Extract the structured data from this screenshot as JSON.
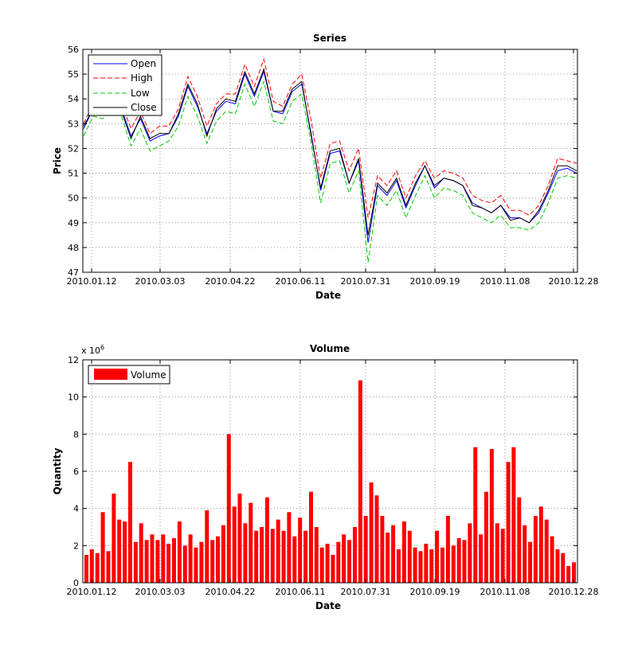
{
  "colors": {
    "open": "#0000ff",
    "high": "#ff0000",
    "low": "#00cc00",
    "close": "#000000",
    "volume": "#ff0000",
    "grid": "#808080"
  },
  "chart_data": [
    {
      "type": "line",
      "title": "Series",
      "xlabel": "Date",
      "ylabel": "Price",
      "ylim": [
        47,
        56
      ],
      "yticks": [
        47,
        48,
        49,
        50,
        51,
        52,
        53,
        54,
        55,
        56
      ],
      "xticks": [
        "2010.01.12",
        "2010.03.03",
        "2010.04.22",
        "2010.06.11",
        "2010.07.31",
        "2010.09.19",
        "2010.11.08",
        "2010.12.28"
      ],
      "grid": true,
      "legend": "top-left",
      "x": [
        "2010-01-01",
        "2010-01-08",
        "2010-01-15",
        "2010-01-22",
        "2010-01-29",
        "2010-02-05",
        "2010-02-12",
        "2010-02-19",
        "2010-02-26",
        "2010-03-05",
        "2010-03-12",
        "2010-03-19",
        "2010-03-26",
        "2010-04-02",
        "2010-04-09",
        "2010-04-16",
        "2010-04-23",
        "2010-04-30",
        "2010-05-07",
        "2010-05-14",
        "2010-05-21",
        "2010-05-28",
        "2010-06-04",
        "2010-06-11",
        "2010-06-18",
        "2010-06-25",
        "2010-07-02",
        "2010-07-09",
        "2010-07-16",
        "2010-07-23",
        "2010-07-30",
        "2010-08-06",
        "2010-08-13",
        "2010-08-20",
        "2010-08-27",
        "2010-09-03",
        "2010-09-10",
        "2010-09-17",
        "2010-09-24",
        "2010-10-01",
        "2010-10-08",
        "2010-10-15",
        "2010-10-22",
        "2010-10-29",
        "2010-11-05",
        "2010-11-12",
        "2010-11-19",
        "2010-11-26",
        "2010-12-03",
        "2010-12-10",
        "2010-12-17",
        "2010-12-24",
        "2010-12-31"
      ],
      "series": [
        {
          "name": "Open",
          "values": [
            52.8,
            53.6,
            53.5,
            53.9,
            53.6,
            52.5,
            53.2,
            52.3,
            52.5,
            52.6,
            53.3,
            54.5,
            53.7,
            52.6,
            53.5,
            53.9,
            53.8,
            55.0,
            54.1,
            55.1,
            53.5,
            53.4,
            54.3,
            54.6,
            52.6,
            50.3,
            51.8,
            51.9,
            50.6,
            51.5,
            48.2,
            50.5,
            50.1,
            50.7,
            49.6,
            50.5,
            51.3,
            50.4,
            50.8,
            50.7,
            50.5,
            49.8,
            49.6,
            49.4,
            49.7,
            49.2,
            49.2,
            49.0,
            49.4,
            50.2,
            51.1,
            51.2,
            51.0
          ]
        },
        {
          "name": "High",
          "values": [
            53.0,
            53.8,
            53.7,
            54.1,
            53.8,
            52.8,
            53.5,
            52.6,
            52.9,
            52.9,
            53.6,
            54.9,
            54.1,
            52.9,
            53.8,
            54.2,
            54.2,
            55.4,
            54.5,
            55.6,
            53.9,
            53.7,
            54.6,
            55.0,
            53.1,
            50.8,
            52.2,
            52.3,
            51.1,
            52.0,
            49.2,
            50.9,
            50.5,
            51.1,
            50.0,
            50.9,
            51.5,
            50.8,
            51.1,
            51.0,
            50.8,
            50.1,
            49.9,
            49.8,
            50.1,
            49.5,
            49.5,
            49.3,
            49.7,
            50.5,
            51.6,
            51.5,
            51.4
          ]
        },
        {
          "name": "Low",
          "values": [
            52.5,
            53.3,
            53.2,
            53.6,
            53.3,
            52.1,
            52.8,
            51.9,
            52.1,
            52.3,
            52.9,
            54.1,
            53.3,
            52.2,
            53.1,
            53.5,
            53.4,
            54.6,
            53.7,
            54.7,
            53.1,
            53.0,
            53.9,
            54.2,
            52.2,
            49.8,
            51.4,
            51.5,
            50.2,
            51.1,
            47.4,
            50.1,
            49.7,
            50.3,
            49.2,
            50.1,
            50.9,
            50.0,
            50.4,
            50.3,
            50.1,
            49.4,
            49.2,
            49.0,
            49.3,
            48.8,
            48.8,
            48.7,
            49.0,
            49.8,
            50.8,
            50.9,
            50.8
          ]
        },
        {
          "name": "Close",
          "values": [
            52.9,
            53.6,
            53.6,
            53.9,
            53.5,
            52.4,
            53.3,
            52.4,
            52.6,
            52.6,
            53.4,
            54.6,
            53.8,
            52.5,
            53.6,
            54.0,
            53.9,
            55.1,
            54.2,
            55.2,
            53.5,
            53.5,
            54.4,
            54.7,
            52.5,
            50.4,
            51.9,
            52.0,
            50.6,
            51.6,
            48.5,
            50.6,
            50.2,
            50.8,
            49.7,
            50.6,
            51.3,
            50.5,
            50.8,
            50.7,
            50.5,
            49.7,
            49.6,
            49.4,
            49.7,
            49.1,
            49.2,
            49.0,
            49.5,
            50.3,
            51.3,
            51.3,
            51.1
          ]
        }
      ]
    },
    {
      "type": "bar",
      "title": "Volume",
      "xlabel": "Date",
      "ylabel": "Quantity",
      "scale_label": "x 10",
      "scale_exp": "6",
      "ylim": [
        0,
        12
      ],
      "yticks": [
        0,
        2,
        4,
        6,
        8,
        10,
        12
      ],
      "xticks": [
        "2010.01.12",
        "2010.03.03",
        "2010.04.22",
        "2010.06.11",
        "2010.07.31",
        "2010.09.19",
        "2010.11.08",
        "2010.12.28"
      ],
      "grid": true,
      "legend": "top-left",
      "series": [
        {
          "name": "Volume",
          "values": [
            1.5,
            1.8,
            1.6,
            3.8,
            1.7,
            4.8,
            3.4,
            3.3,
            6.5,
            2.2,
            3.2,
            2.3,
            2.6,
            2.3,
            2.6,
            2.1,
            2.4,
            3.3,
            2.0,
            2.6,
            1.9,
            2.2,
            3.9,
            2.3,
            2.5,
            3.1,
            8.0,
            4.1,
            4.8,
            3.2,
            4.3,
            2.8,
            3.0,
            4.6,
            2.9,
            3.4,
            2.8,
            3.8,
            2.5,
            3.5,
            2.8,
            4.9,
            3.0,
            1.9,
            2.1,
            1.5,
            2.2,
            2.6,
            2.3,
            3.0,
            10.9,
            3.6,
            5.4,
            4.7,
            3.6,
            2.7,
            3.1,
            1.8,
            3.3,
            2.8,
            1.9,
            1.7,
            2.1,
            1.8,
            2.8,
            1.9,
            3.6,
            2.0,
            2.4,
            2.3,
            3.2,
            7.3,
            2.6,
            4.9,
            7.2,
            3.2,
            2.9,
            6.5,
            7.3,
            4.6,
            3.1,
            2.2,
            3.6,
            4.1,
            3.4,
            2.5,
            1.8,
            1.6,
            0.9,
            1.1
          ]
        }
      ]
    }
  ]
}
